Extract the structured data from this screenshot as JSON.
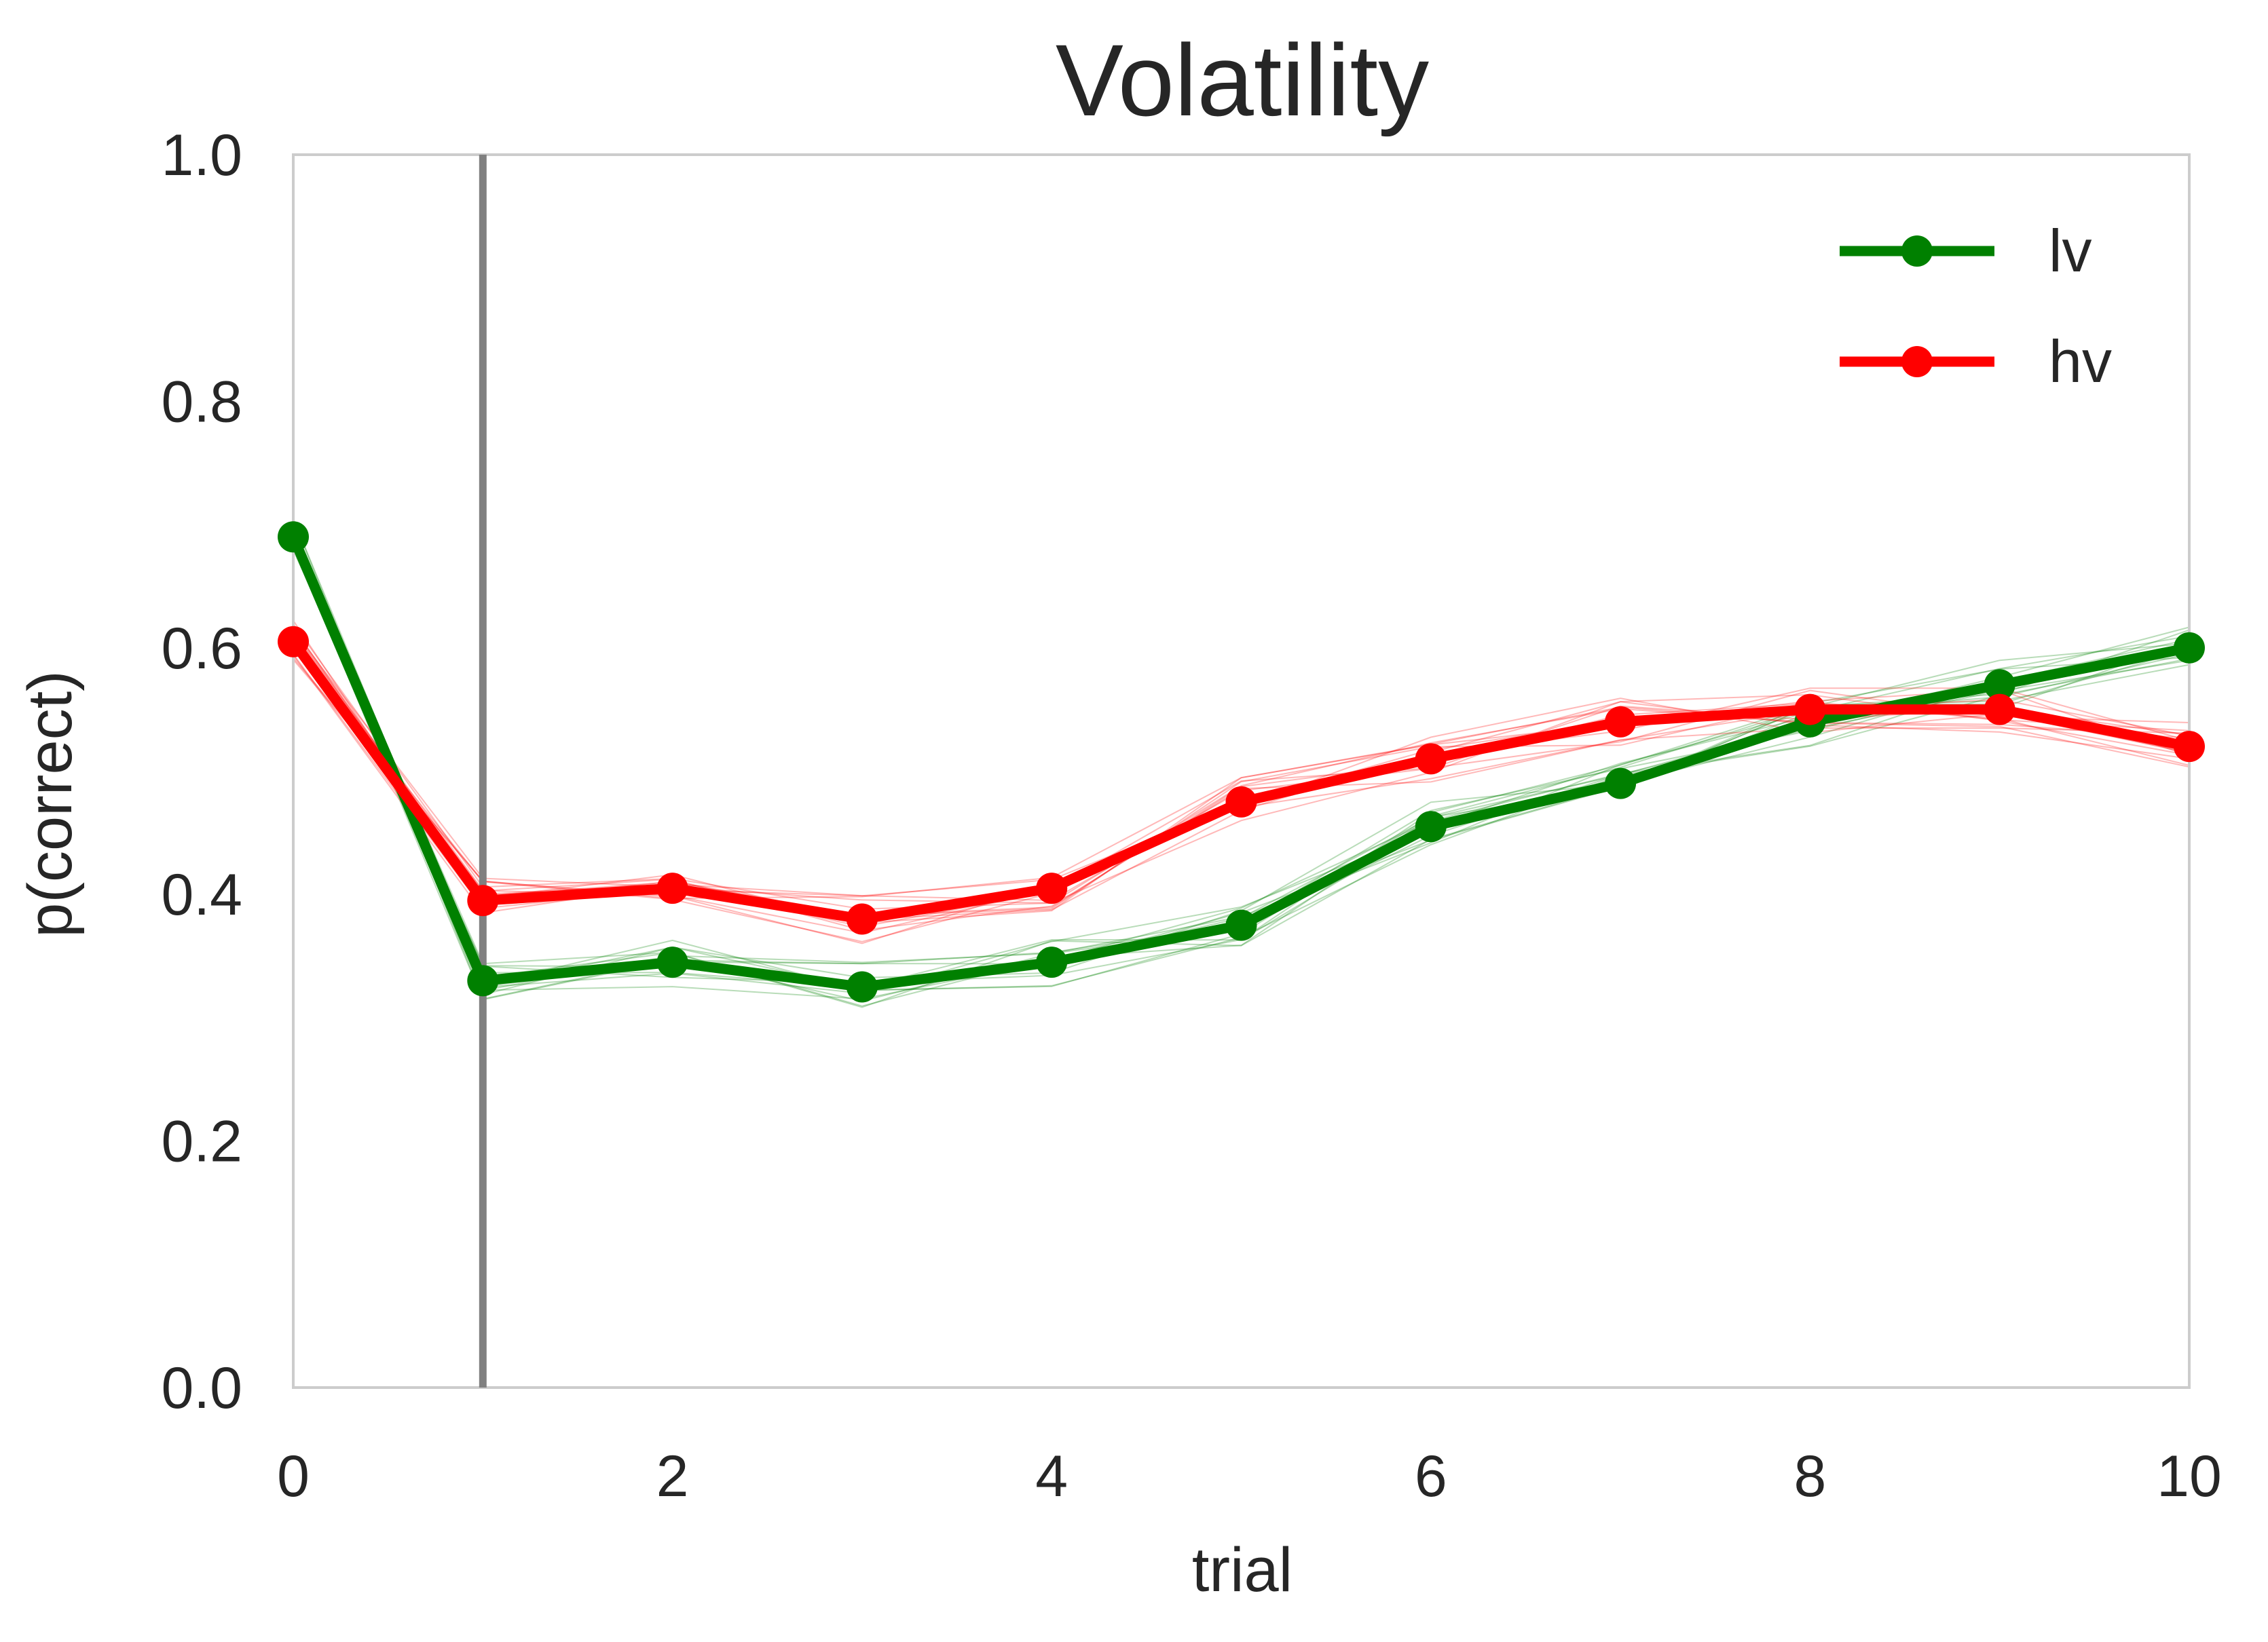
{
  "chart_data": {
    "type": "line",
    "title": "Volatility",
    "xlabel": "trial",
    "ylabel": "p(correct)",
    "xlim": [
      0,
      10
    ],
    "ylim": [
      0.0,
      1.0
    ],
    "x_ticks": [
      "0",
      "2",
      "4",
      "6",
      "8",
      "10"
    ],
    "y_ticks": [
      "0.0",
      "0.2",
      "0.4",
      "0.6",
      "0.8",
      "1.0"
    ],
    "grid": false,
    "legend_position": "top-right",
    "vertical_line_x": 1,
    "x": [
      0,
      1,
      2,
      3,
      4,
      5,
      6,
      7,
      8,
      9,
      10
    ],
    "series": [
      {
        "name": "lv",
        "color": "#008000",
        "values": [
          0.69,
          0.33,
          0.345,
          0.325,
          0.345,
          0.375,
          0.455,
          0.49,
          0.54,
          0.57,
          0.6
        ]
      },
      {
        "name": "hv",
        "color": "#ff0000",
        "values": [
          0.605,
          0.395,
          0.405,
          0.38,
          0.405,
          0.475,
          0.51,
          0.54,
          0.55,
          0.55,
          0.52
        ]
      }
    ]
  }
}
